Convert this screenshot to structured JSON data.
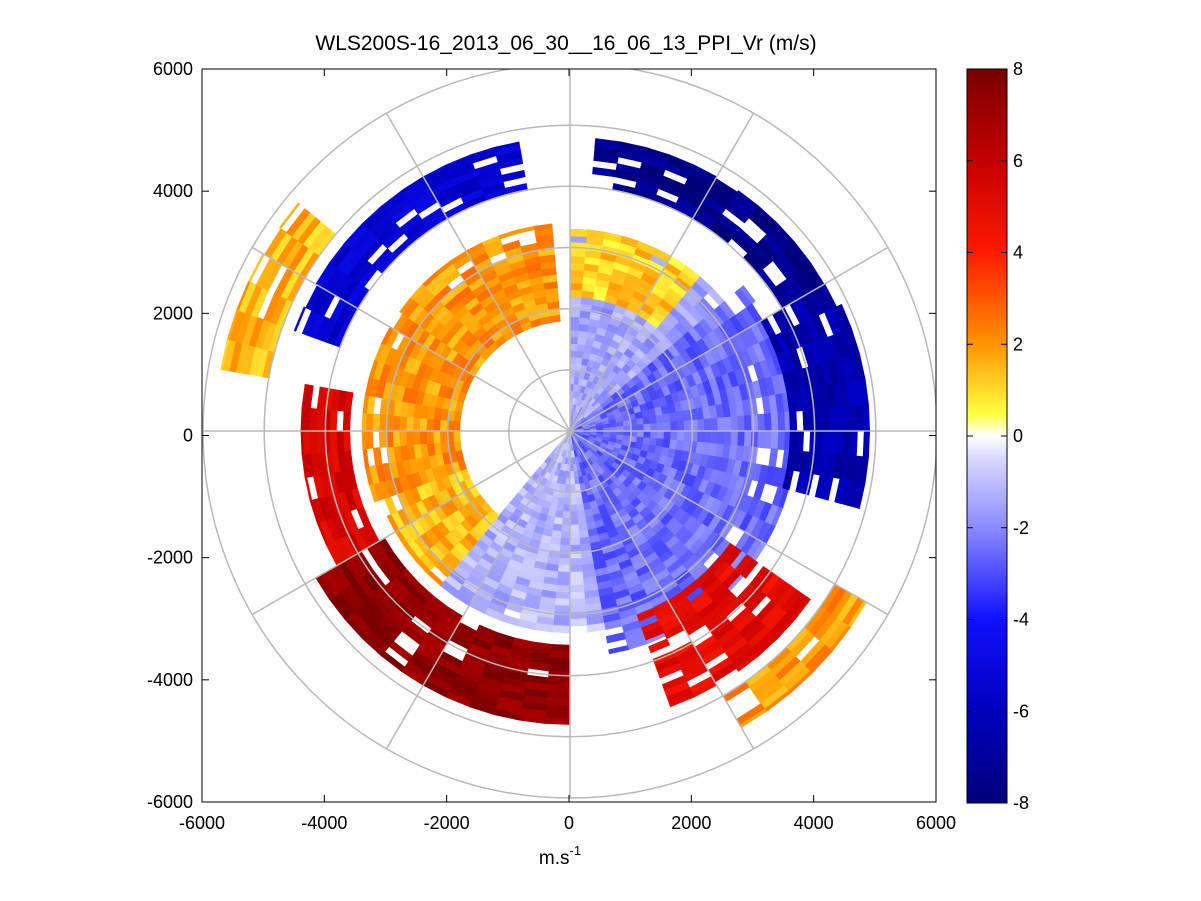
{
  "chart_data": {
    "type": "heatmap",
    "subtype": "polar-ppi",
    "title": "WLS200S-16_2013_06_30__16_06_13_PPI_Vr (m/s)",
    "xlabel": "m.s",
    "xlabel_sup": "-1",
    "ylabel": "",
    "xlim": [
      -6000,
      6000
    ],
    "ylim": [
      -6000,
      6000
    ],
    "x_ticks": [
      -6000,
      -4000,
      -2000,
      0,
      2000,
      4000,
      6000
    ],
    "y_ticks": [
      -6000,
      -4000,
      -2000,
      0,
      2000,
      4000,
      6000
    ],
    "x_tick_labels": [
      "-6000",
      "-4000",
      "-2000",
      "0",
      "2000",
      "4000",
      "6000"
    ],
    "y_tick_labels": [
      "-6000",
      "-4000",
      "-2000",
      "0",
      "2000",
      "4000",
      "6000"
    ],
    "colorbar": {
      "range": [
        -8,
        8
      ],
      "ticks": [
        8,
        6,
        4,
        2,
        0,
        -2,
        -4,
        -6,
        -8
      ],
      "tick_labels": [
        "8",
        "6",
        "4",
        "2",
        "0",
        "-2",
        "-4",
        "-6",
        "-8"
      ],
      "unit": "m/s"
    },
    "polar_grid": {
      "range_rings_m": [
        1000,
        2000,
        3000,
        4000,
        5000,
        6000
      ],
      "spoke_step_deg": 30
    },
    "sectors": [
      {
        "from_az": 0,
        "to_az": 50,
        "r_from": 0,
        "r_to": 3300,
        "v": -1.5
      },
      {
        "from_az": 50,
        "to_az": 170,
        "r_from": 0,
        "r_to": 3700,
        "v": -2.5
      },
      {
        "from_az": 170,
        "to_az": 220,
        "r_from": 0,
        "r_to": 3300,
        "v": -1.2
      },
      {
        "from_az": 220,
        "to_az": 250,
        "r_from": 1800,
        "r_to": 3300,
        "v": 1.5
      },
      {
        "from_az": 250,
        "to_az": 355,
        "r_from": 1800,
        "r_to": 3400,
        "v": 2.0
      },
      {
        "from_az": 360,
        "to_az": 400,
        "r_from": 2200,
        "r_to": 3300,
        "v": 1.2
      },
      {
        "from_az": 5,
        "to_az": 60,
        "r_from": 4000,
        "r_to": 4800,
        "v": -7.5
      },
      {
        "from_az": 60,
        "to_az": 105,
        "r_from": 3600,
        "r_to": 4900,
        "v": -6.5
      },
      {
        "from_az": 290,
        "to_az": 350,
        "r_from": 4000,
        "r_to": 4800,
        "v": -5.5
      },
      {
        "from_az": 125,
        "to_az": 160,
        "r_from": 3200,
        "r_to": 4800,
        "v": 5.0
      },
      {
        "from_az": 180,
        "to_az": 240,
        "r_from": 3500,
        "r_to": 4800,
        "v": 7.5
      },
      {
        "from_az": 240,
        "to_az": 280,
        "r_from": 3600,
        "r_to": 4400,
        "v": 5.5
      },
      {
        "from_az": 120,
        "to_az": 150,
        "r_from": 5000,
        "r_to": 5600,
        "v": 2.0
      },
      {
        "from_az": 280,
        "to_az": 310,
        "r_from": 5000,
        "r_to": 5800,
        "v": 1.5
      }
    ]
  }
}
